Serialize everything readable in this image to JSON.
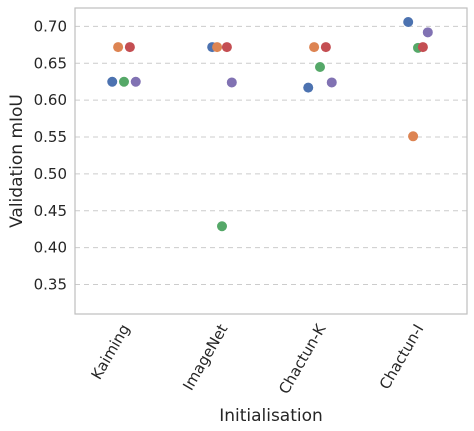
{
  "chart_data": {
    "type": "scatter",
    "title": "",
    "xlabel": "Initialisation",
    "ylabel": "Validation mIoU",
    "categories": [
      "Kaiming",
      "ImageNet",
      "Chactun-K",
      "Chactun-I"
    ],
    "ylim": [
      0.31,
      0.725
    ],
    "yticks": [
      "0.35",
      "0.40",
      "0.45",
      "0.50",
      "0.55",
      "0.60",
      "0.65",
      "0.70"
    ],
    "grid": true,
    "legend": "none",
    "x_tick_rotation": 60,
    "points": [
      {
        "category": "Kaiming",
        "offset": -0.12,
        "value": 0.625,
        "color": "#4c72b0"
      },
      {
        "category": "Kaiming",
        "offset": -0.06,
        "value": 0.672,
        "color": "#dd8452"
      },
      {
        "category": "Kaiming",
        "offset": 0.0,
        "value": 0.625,
        "color": "#55a868"
      },
      {
        "category": "Kaiming",
        "offset": 0.06,
        "value": 0.672,
        "color": "#c44e52"
      },
      {
        "category": "Kaiming",
        "offset": 0.12,
        "value": 0.625,
        "color": "#8172b3"
      },
      {
        "category": "ImageNet",
        "offset": -0.1,
        "value": 0.672,
        "color": "#4c72b0"
      },
      {
        "category": "ImageNet",
        "offset": -0.05,
        "value": 0.672,
        "color": "#dd8452"
      },
      {
        "category": "ImageNet",
        "offset": 0.0,
        "value": 0.429,
        "color": "#55a868"
      },
      {
        "category": "ImageNet",
        "offset": 0.05,
        "value": 0.672,
        "color": "#c44e52"
      },
      {
        "category": "ImageNet",
        "offset": 0.1,
        "value": 0.624,
        "color": "#8172b3"
      },
      {
        "category": "Chactun-K",
        "offset": -0.12,
        "value": 0.617,
        "color": "#4c72b0"
      },
      {
        "category": "Chactun-K",
        "offset": -0.06,
        "value": 0.672,
        "color": "#dd8452"
      },
      {
        "category": "Chactun-K",
        "offset": 0.0,
        "value": 0.645,
        "color": "#55a868"
      },
      {
        "category": "Chactun-K",
        "offset": 0.06,
        "value": 0.672,
        "color": "#c44e52"
      },
      {
        "category": "Chactun-K",
        "offset": 0.12,
        "value": 0.624,
        "color": "#8172b3"
      },
      {
        "category": "Chactun-I",
        "offset": -0.1,
        "value": 0.706,
        "color": "#4c72b0"
      },
      {
        "category": "Chactun-I",
        "offset": -0.05,
        "value": 0.551,
        "color": "#dd8452"
      },
      {
        "category": "Chactun-I",
        "offset": 0.0,
        "value": 0.671,
        "color": "#55a868"
      },
      {
        "category": "Chactun-I",
        "offset": 0.05,
        "value": 0.672,
        "color": "#c44e52"
      },
      {
        "category": "Chactun-I",
        "offset": 0.1,
        "value": 0.692,
        "color": "#8172b3"
      }
    ]
  }
}
